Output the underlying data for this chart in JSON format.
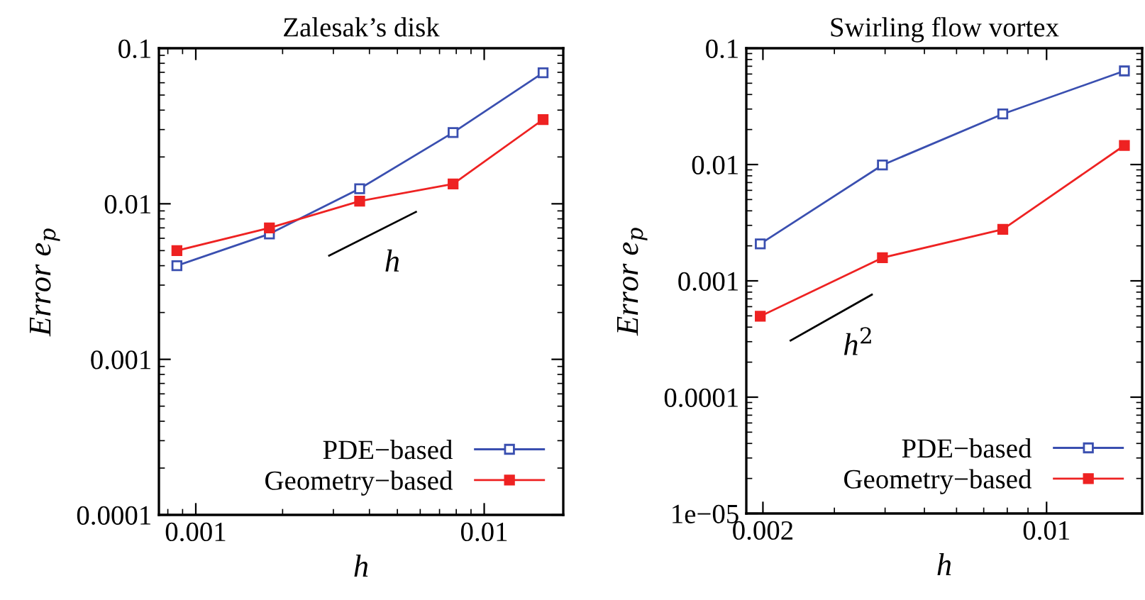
{
  "chart_data": [
    {
      "type": "line",
      "title": "Zalesak’s disk",
      "xlabel": "h",
      "ylabel": "Error e$_{p}$",
      "log": "xy",
      "legend": "bottom right",
      "grid": false,
      "xlim": [
        0.000745,
        0.0188
      ],
      "xticks": [
        0.001,
        0.01
      ],
      "ylim": [
        0.0001,
        0.1
      ],
      "yticks": [
        0.0001,
        0.001,
        0.01,
        0.1
      ],
      "series": [
        {
          "name": "PDE−based",
          "color": "#3a4fb0",
          "marker": "square",
          "x": [
            0.00086,
            0.0018,
            0.0037,
            0.0078,
            0.016
          ],
          "values": [
            0.004,
            0.0064,
            0.0125,
            0.0287,
            0.0695
          ]
        },
        {
          "name": "Geometry−based",
          "color": "#ee2222",
          "marker": "square",
          "x": [
            0.00086,
            0.0018,
            0.0037,
            0.0078,
            0.016
          ],
          "values": [
            0.005,
            0.007,
            0.0104,
            0.0134,
            0.0348
          ]
        },
        {
          "color": "#000000",
          "marker": "none",
          "x": [
            0.0029,
            0.0058
          ],
          "values": [
            0.00464,
            0.00887
          ]
        }
      ],
      "annotations": [
        "h"
      ]
    },
    {
      "type": "line",
      "title": "Swirling flow vortex",
      "xlabel": "h",
      "ylabel": "Error e$_{p}$",
      "log": "xy",
      "legend": "bottom right",
      "grid": false,
      "xlim": [
        0.00182,
        0.0172
      ],
      "xticks": [
        0.002,
        0.01
      ],
      "ylim": [
        1e-05,
        0.1
      ],
      "yticks": [
        {
          "value": 1e-05,
          "label": "1e−05"
        },
        0.0001,
        0.001,
        0.01,
        0.1
      ],
      "series": [
        {
          "name": "PDE−based",
          "color": "#3a4fb0",
          "marker": "square",
          "x": [
            0.00197,
            0.00394,
            0.0078,
            0.01555
          ],
          "values": [
            0.00208,
            0.0099,
            0.0272,
            0.0638
          ]
        },
        {
          "name": "Geometry−based",
          "color": "#ee2222",
          "marker": "square",
          "x": [
            0.00197,
            0.00394,
            0.0078,
            0.01555
          ],
          "values": [
            0.000496,
            0.00158,
            0.00277,
            0.0146
          ]
        },
        {
          "color": "#000000",
          "marker": "none",
          "x": [
            0.00234,
            0.00371
          ],
          "values": [
            0.000307,
            0.000762
          ]
        }
      ],
      "annotations": [
        "h$^{2}$"
      ]
    }
  ]
}
